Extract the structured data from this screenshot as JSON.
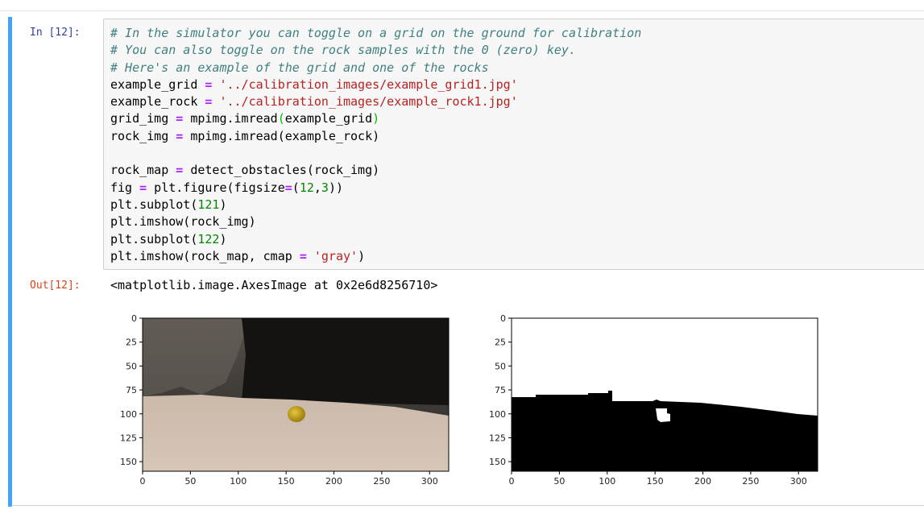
{
  "cell": {
    "in_prompt": "In [12]:",
    "out_prompt": "Out[12]:",
    "code_lines": [
      [
        {
          "t": "# In the simulator you can toggle on a grid on the ground for calibration",
          "c": "comment"
        }
      ],
      [
        {
          "t": "# You can also toggle on the rock samples with the 0 (zero) key.",
          "c": "comment"
        }
      ],
      [
        {
          "t": "# Here's an example of the grid and one of the rocks",
          "c": "comment"
        }
      ],
      [
        {
          "t": "example_grid ",
          "c": ""
        },
        {
          "t": "=",
          "c": "op"
        },
        {
          "t": " ",
          "c": ""
        },
        {
          "t": "'../calibration_images/example_grid1.jpg'",
          "c": "string"
        }
      ],
      [
        {
          "t": "example_rock ",
          "c": ""
        },
        {
          "t": "=",
          "c": "op"
        },
        {
          "t": " ",
          "c": ""
        },
        {
          "t": "'../calibration_images/example_rock1.jpg'",
          "c": "string"
        }
      ],
      [
        {
          "t": "grid_img ",
          "c": ""
        },
        {
          "t": "=",
          "c": "op"
        },
        {
          "t": " mpimg.imread",
          "c": ""
        },
        {
          "t": "(",
          "c": "bracket"
        },
        {
          "t": "example_grid",
          "c": ""
        },
        {
          "t": ")",
          "c": "bracket"
        }
      ],
      [
        {
          "t": "rock_img ",
          "c": ""
        },
        {
          "t": "=",
          "c": "op"
        },
        {
          "t": " mpimg.imread(example_rock)",
          "c": ""
        }
      ],
      [],
      [
        {
          "t": "rock_map ",
          "c": ""
        },
        {
          "t": "=",
          "c": "op"
        },
        {
          "t": " detect_obstacles(rock_img)",
          "c": ""
        }
      ],
      [
        {
          "t": "fig ",
          "c": ""
        },
        {
          "t": "=",
          "c": "op"
        },
        {
          "t": " plt.figure(figsize",
          "c": ""
        },
        {
          "t": "=",
          "c": "op"
        },
        {
          "t": "(",
          "c": ""
        },
        {
          "t": "12",
          "c": "number"
        },
        {
          "t": ",",
          "c": ""
        },
        {
          "t": "3",
          "c": "number"
        },
        {
          "t": "))",
          "c": ""
        }
      ],
      [
        {
          "t": "plt.subplot(",
          "c": ""
        },
        {
          "t": "121",
          "c": "number"
        },
        {
          "t": ")",
          "c": ""
        }
      ],
      [
        {
          "t": "plt.imshow(rock_img)",
          "c": ""
        }
      ],
      [
        {
          "t": "plt.subplot(",
          "c": ""
        },
        {
          "t": "122",
          "c": "number"
        },
        {
          "t": ")",
          "c": ""
        }
      ],
      [
        {
          "t": "plt.imshow(rock_map, cmap ",
          "c": ""
        },
        {
          "t": "=",
          "c": "op"
        },
        {
          "t": " ",
          "c": ""
        },
        {
          "t": "'gray'",
          "c": "string"
        },
        {
          "t": ")",
          "c": ""
        }
      ]
    ],
    "output_text": "<matplotlib.image.AxesImage at 0x2e6d8256710>"
  },
  "figure": {
    "subplots": [
      {
        "name": "rock-image-plot",
        "kind": "rgb"
      },
      {
        "name": "rock-map-plot",
        "kind": "gray"
      }
    ],
    "x_ticks": [
      "0",
      "50",
      "100",
      "150",
      "200",
      "250",
      "300"
    ],
    "y_ticks": [
      "0",
      "25",
      "50",
      "75",
      "100",
      "125",
      "150"
    ],
    "x_values": [
      0,
      50,
      100,
      150,
      200,
      250,
      300
    ],
    "y_values": [
      0,
      25,
      50,
      75,
      100,
      125,
      150
    ],
    "x_extent": [
      0,
      320
    ],
    "y_extent": [
      0,
      160
    ],
    "colors": {
      "cell_bar": "#42a5f5",
      "in_prompt": "#303f9f",
      "out_prompt": "#d84315"
    }
  }
}
